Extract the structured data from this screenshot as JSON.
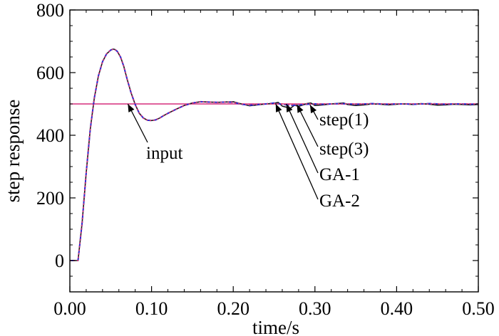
{
  "chart_data": {
    "type": "line",
    "title": "",
    "xlabel": "time/s",
    "ylabel": "step response",
    "xlim": [
      0.0,
      0.5
    ],
    "ylim": [
      -100,
      800
    ],
    "xticks": [
      0.0,
      0.1,
      0.2,
      0.3,
      0.4,
      0.5
    ],
    "xtick_labels": [
      "0.00",
      "0.10",
      "0.20",
      "0.30",
      "0.40",
      "0.50"
    ],
    "yticks": [
      0,
      200,
      400,
      600,
      800
    ],
    "ytick_labels": [
      "0",
      "200",
      "400",
      "600",
      "800"
    ],
    "grid": false,
    "series": [
      {
        "name": "input",
        "color": "#d62d7c",
        "style": "solid",
        "x": [
          0.0,
          0.5
        ],
        "y": [
          500,
          500
        ]
      },
      {
        "name": "step(1)",
        "color": "#1a1a1a",
        "style": "solid",
        "x": [
          0.0,
          0.004,
          0.006,
          0.01,
          0.015,
          0.02,
          0.025,
          0.03,
          0.035,
          0.04,
          0.045,
          0.05,
          0.053,
          0.055,
          0.058,
          0.062,
          0.066,
          0.07,
          0.075,
          0.08,
          0.085,
          0.09,
          0.095,
          0.1,
          0.105,
          0.11,
          0.115,
          0.12,
          0.13,
          0.14,
          0.15,
          0.16,
          0.17,
          0.18,
          0.19,
          0.2,
          0.21,
          0.22,
          0.23,
          0.24,
          0.25,
          0.255,
          0.26,
          0.27,
          0.275,
          0.28,
          0.29,
          0.295,
          0.3,
          0.31,
          0.32,
          0.33,
          0.335,
          0.34,
          0.35,
          0.36,
          0.37,
          0.38,
          0.39,
          0.4,
          0.41,
          0.42,
          0.43,
          0.44,
          0.45,
          0.46,
          0.47,
          0.48,
          0.49,
          0.5
        ],
        "y": [
          0,
          0,
          0,
          0,
          120,
          280,
          420,
          520,
          590,
          635,
          660,
          672,
          675,
          674,
          668,
          650,
          620,
          580,
          535,
          498,
          470,
          455,
          448,
          447,
          449,
          455,
          463,
          470,
          483,
          495,
          503,
          507,
          506,
          505,
          506,
          507,
          500,
          494,
          497,
          500,
          502,
          505,
          493,
          486,
          496,
          492,
          501,
          503,
          495,
          497,
          500,
          502,
          503,
          498,
          495,
          497,
          500,
          499,
          497,
          499,
          500,
          498,
          501,
          499,
          496,
          497,
          499,
          498,
          497,
          498
        ]
      },
      {
        "name": "step(3)",
        "color": "#2b2bd0",
        "style": "dashed",
        "x": [
          0.0,
          0.004,
          0.006,
          0.01,
          0.015,
          0.02,
          0.025,
          0.03,
          0.035,
          0.04,
          0.045,
          0.05,
          0.053,
          0.055,
          0.058,
          0.062,
          0.066,
          0.07,
          0.075,
          0.08,
          0.085,
          0.09,
          0.095,
          0.1,
          0.105,
          0.11,
          0.115,
          0.12,
          0.13,
          0.14,
          0.15,
          0.16,
          0.17,
          0.18,
          0.19,
          0.2,
          0.21,
          0.22,
          0.23,
          0.24,
          0.25,
          0.26,
          0.27,
          0.28,
          0.29,
          0.3,
          0.31,
          0.32,
          0.33,
          0.34,
          0.35,
          0.36,
          0.37,
          0.38,
          0.39,
          0.4,
          0.41,
          0.42,
          0.43,
          0.44,
          0.45,
          0.46,
          0.47,
          0.48,
          0.49,
          0.5
        ],
        "y": [
          0,
          0,
          0,
          0,
          120,
          280,
          420,
          520,
          590,
          635,
          660,
          672,
          675,
          674,
          668,
          650,
          620,
          580,
          535,
          498,
          470,
          455,
          448,
          447,
          449,
          455,
          463,
          470,
          483,
          495,
          503,
          507,
          506,
          505,
          506,
          505,
          499,
          496,
          498,
          500,
          503,
          499,
          495,
          497,
          499,
          500,
          499,
          500,
          501,
          500,
          499,
          500,
          501,
          500,
          499,
          500,
          500,
          499,
          500,
          501,
          500,
          499,
          500,
          500,
          499,
          500
        ]
      },
      {
        "name": "GA-1",
        "color": "#2b7fd8",
        "style": "dotted",
        "x": [
          0.0,
          0.004,
          0.006,
          0.01,
          0.015,
          0.02,
          0.025,
          0.03,
          0.035,
          0.04,
          0.045,
          0.05,
          0.053,
          0.055,
          0.058,
          0.062,
          0.066,
          0.07,
          0.075,
          0.08,
          0.085,
          0.09,
          0.095,
          0.1,
          0.105,
          0.11,
          0.115,
          0.12,
          0.13,
          0.14,
          0.15,
          0.16,
          0.17,
          0.18,
          0.19,
          0.2,
          0.21,
          0.22,
          0.23,
          0.24,
          0.25,
          0.26,
          0.27,
          0.28,
          0.29,
          0.3,
          0.31,
          0.32,
          0.33,
          0.34,
          0.35,
          0.36,
          0.37,
          0.38,
          0.39,
          0.4,
          0.41,
          0.42,
          0.43,
          0.44,
          0.45,
          0.46,
          0.47,
          0.48,
          0.49,
          0.5
        ],
        "y": [
          0,
          0,
          0,
          0,
          120,
          280,
          420,
          520,
          590,
          635,
          660,
          672,
          675,
          674,
          668,
          650,
          620,
          580,
          535,
          498,
          470,
          455,
          448,
          447,
          449,
          455,
          463,
          470,
          483,
          495,
          503,
          507,
          506,
          505,
          506,
          505,
          500,
          497,
          499,
          500,
          502,
          500,
          497,
          498,
          500,
          500,
          500,
          500,
          500,
          500,
          500,
          500,
          500,
          500,
          500,
          500,
          500,
          500,
          500,
          500,
          500,
          500,
          500,
          500,
          500,
          500
        ]
      },
      {
        "name": "GA-2",
        "color": "#e0306a",
        "style": "dotted",
        "x": [
          0.0,
          0.004,
          0.006,
          0.01,
          0.015,
          0.02,
          0.025,
          0.03,
          0.035,
          0.04,
          0.045,
          0.05,
          0.053,
          0.055,
          0.058,
          0.062,
          0.066,
          0.07,
          0.075,
          0.08,
          0.085,
          0.09,
          0.095,
          0.1,
          0.105,
          0.11,
          0.115,
          0.12,
          0.13,
          0.14,
          0.15,
          0.16,
          0.17,
          0.18,
          0.19,
          0.2,
          0.21,
          0.22,
          0.23,
          0.24,
          0.25,
          0.26,
          0.27,
          0.28,
          0.29,
          0.3,
          0.31,
          0.32,
          0.33,
          0.34,
          0.35,
          0.36,
          0.37,
          0.38,
          0.39,
          0.4,
          0.41,
          0.42,
          0.43,
          0.44,
          0.45,
          0.46,
          0.47,
          0.48,
          0.49,
          0.5
        ],
        "y": [
          0,
          0,
          0,
          0,
          120,
          280,
          420,
          520,
          590,
          635,
          660,
          672,
          675,
          674,
          668,
          650,
          620,
          580,
          535,
          498,
          470,
          455,
          448,
          447,
          449,
          455,
          463,
          470,
          483,
          495,
          503,
          507,
          506,
          505,
          506,
          505,
          500,
          498,
          499,
          500,
          501,
          500,
          498,
          499,
          500,
          500,
          500,
          500,
          500,
          500,
          500,
          500,
          500,
          500,
          500,
          500,
          500,
          500,
          500,
          500,
          500,
          500,
          500,
          500,
          500,
          500
        ]
      }
    ],
    "annotations": [
      {
        "text": "input",
        "points_to": [
          0.071,
          500
        ]
      },
      {
        "text": "step(1)",
        "points_to": [
          0.294,
          497
        ]
      },
      {
        "text": "step(3)",
        "points_to": [
          0.278,
          498
        ]
      },
      {
        "text": "GA-1",
        "points_to": [
          0.265,
          500
        ]
      },
      {
        "text": "GA-2",
        "points_to": [
          0.252,
          500
        ]
      }
    ]
  }
}
